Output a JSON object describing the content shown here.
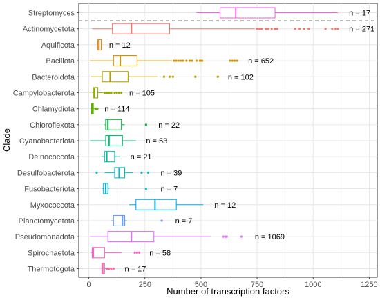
{
  "chart_data": {
    "type": "boxplot",
    "orientation": "horizontal",
    "title": "",
    "xlabel": "Number of transcription factors",
    "ylabel": "Clade",
    "xlim": [
      -40,
      1270
    ],
    "xticks": [
      0,
      250,
      500,
      750,
      1000,
      1250
    ],
    "xtick_labels": [
      "0",
      "250",
      "500",
      "750",
      "1000",
      "1250"
    ],
    "grid": true,
    "legend": "none",
    "reference_line": {
      "after_category": "Streptomyces",
      "style": "dashed"
    },
    "series": [
      {
        "category": "Streptomyces",
        "color": "#F564E3",
        "min": 480,
        "q1": 585,
        "median": 655,
        "q3": 830,
        "max": 1110,
        "outliers": [],
        "n_label": "n = 17",
        "n_label_x": 1160
      },
      {
        "category": "Actinomycetota",
        "color": "#F8766D",
        "min": 15,
        "q1": 105,
        "median": 190,
        "q3": 360,
        "max": 740,
        "outliers": [
          750,
          760,
          770,
          790,
          800,
          815,
          830,
          840,
          920,
          940,
          960,
          980,
          1055,
          1085,
          1100,
          1110
        ],
        "n_label": "n = 271",
        "n_label_x": 1160
      },
      {
        "category": "Aquificota",
        "color": "#E7861B",
        "min": 35,
        "q1": 40,
        "median": 45,
        "q3": 55,
        "max": 60,
        "outliers": [],
        "n_label": "n = 12",
        "n_label_x": 90
      },
      {
        "category": "Bacillota",
        "color": "#D39200",
        "min": 5,
        "q1": 110,
        "median": 140,
        "q3": 215,
        "max": 370,
        "outliers": [
          380,
          390,
          400,
          410,
          420,
          435,
          450,
          460,
          480,
          495,
          500,
          505,
          630,
          640,
          650,
          660
        ],
        "n_label": "n = 652",
        "n_label_x": 710
      },
      {
        "category": "Bacteroidota",
        "color": "#B79F00",
        "min": 10,
        "q1": 60,
        "median": 95,
        "q3": 175,
        "max": 305,
        "outliers": [
          335,
          360,
          375,
          475,
          575
        ],
        "n_label": "n = 102",
        "n_label_x": 620
      },
      {
        "category": "Campylobacterota",
        "color": "#93AA00",
        "min": 15,
        "q1": 20,
        "median": 25,
        "q3": 40,
        "max": 65,
        "outliers": [
          70,
          78,
          85,
          92,
          100,
          115,
          125,
          135,
          145
        ],
        "n_label": "n = 105",
        "n_label_x": 180
      },
      {
        "category": "Chlamydiota",
        "color": "#5EB300",
        "min": 10,
        "q1": 12,
        "median": 15,
        "q3": 20,
        "max": 25,
        "outliers": [
          30,
          35,
          38
        ],
        "n_label": "n = 114",
        "n_label_x": 70
      },
      {
        "category": "Chloroflexota",
        "color": "#00BA38",
        "min": 70,
        "q1": 75,
        "median": 85,
        "q3": 145,
        "max": 160,
        "outliers": [
          255
        ],
        "n_label": "n = 22",
        "n_label_x": 310
      },
      {
        "category": "Cyanobacteriota",
        "color": "#00BF74",
        "min": 5,
        "q1": 75,
        "median": 90,
        "q3": 150,
        "max": 210,
        "outliers": [],
        "n_label": "n = 53",
        "n_label_x": 255
      },
      {
        "category": "Deinococcota",
        "color": "#00C19F",
        "min": 55,
        "q1": 70,
        "median": 80,
        "q3": 115,
        "max": 140,
        "outliers": [],
        "n_label": "n = 21",
        "n_label_x": 185
      },
      {
        "category": "Desulfobacterota",
        "color": "#00BFC4",
        "min": 70,
        "q1": 115,
        "median": 135,
        "q3": 160,
        "max": 195,
        "outliers": [
          35,
          235,
          265
        ],
        "n_label": "n = 39",
        "n_label_x": 320
      },
      {
        "category": "Fusobacteriota",
        "color": "#00B9E3",
        "min": 60,
        "q1": 65,
        "median": 75,
        "q3": 85,
        "max": 90,
        "outliers": [
          255
        ],
        "n_label": "n = 7",
        "n_label_x": 320
      },
      {
        "category": "Myxococcota",
        "color": "#00ADFA",
        "min": 180,
        "q1": 210,
        "median": 295,
        "q3": 390,
        "max": 510,
        "outliers": [],
        "n_label": "n = 12",
        "n_label_x": 560
      },
      {
        "category": "Planctomycetota",
        "color": "#619CFF",
        "min": 100,
        "q1": 110,
        "median": 150,
        "q3": 160,
        "max": 170,
        "outliers": [
          325
        ],
        "n_label": "n = 7",
        "n_label_x": 385
      },
      {
        "category": "Pseudomonadota",
        "color": "#DB72FB",
        "min": 5,
        "q1": 85,
        "median": 190,
        "q3": 290,
        "max": 545,
        "outliers": [
          600,
          610,
          615,
          680
        ],
        "n_label": "n = 1069",
        "n_label_x": 740
      },
      {
        "category": "Spirochaetota",
        "color": "#FF61C3",
        "min": 10,
        "q1": 15,
        "median": 20,
        "q3": 70,
        "max": 145,
        "outliers": [
          205,
          215,
          225
        ],
        "n_label": "n = 58",
        "n_label_x": 270
      },
      {
        "category": "Thermotogota",
        "color": "#FF66A8",
        "min": 55,
        "q1": 58,
        "median": 62,
        "q3": 70,
        "max": 75,
        "outliers": [
          80,
          85,
          90,
          100,
          110
        ],
        "n_label": "n = 17",
        "n_label_x": 160
      }
    ]
  }
}
